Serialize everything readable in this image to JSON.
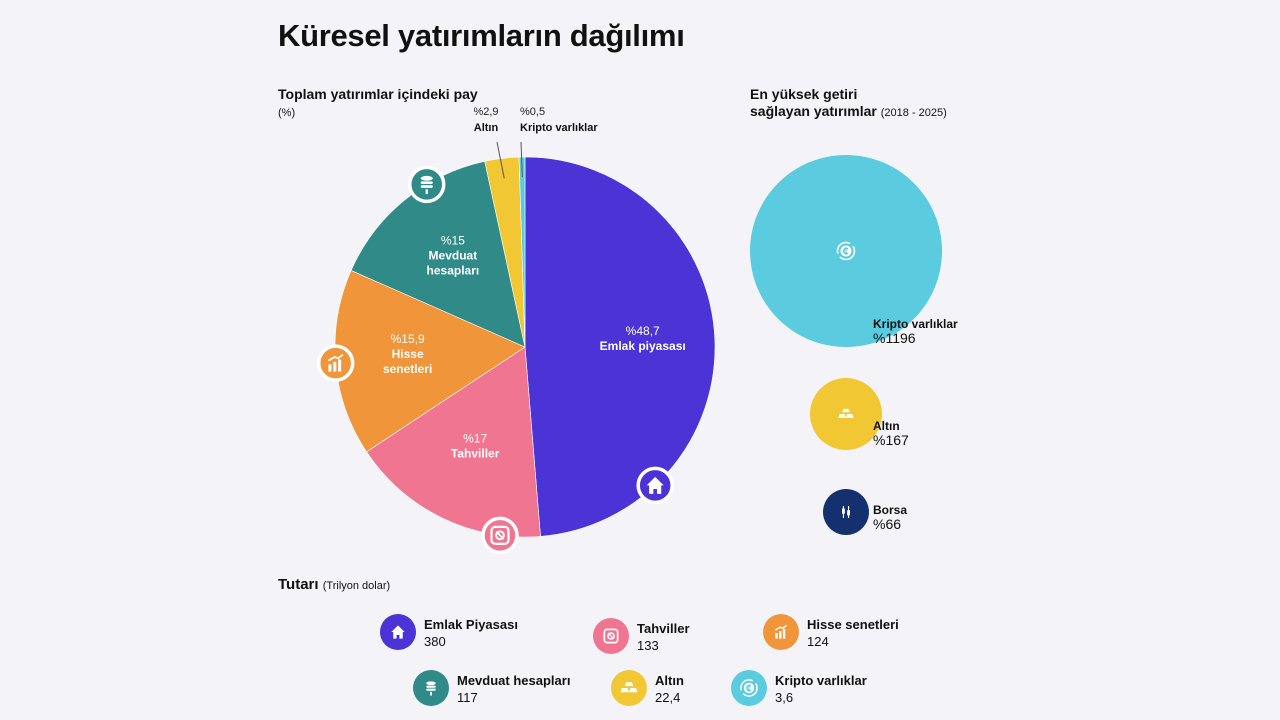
{
  "title": "Küresel yatırımların dağılımı",
  "pie_subtitle": {
    "main": "Toplam yatırımlar içindeki pay",
    "unit": "(%)"
  },
  "bubble_subtitle": {
    "line1": "En yüksek getiri",
    "line2": "sağlayan yatırımlar",
    "period": "(2018 - 2025)"
  },
  "amount_title": {
    "main": "Tutarı",
    "unit": "(Trilyon dolar)"
  },
  "colors": {
    "real_estate": "#4b33d6",
    "bonds": "#ef7590",
    "stocks": "#f1953a",
    "deposits": "#2f8a88",
    "gold": "#f2c734",
    "crypto": "#5bcbe0",
    "exchange": "#14306e"
  },
  "chart_data": [
    {
      "type": "pie",
      "title": "Toplam yatırımlar içindeki pay (%)",
      "slices": [
        {
          "id": "real_estate",
          "label": "Emlak piyasası",
          "value": 48.7,
          "value_label": "%48,7",
          "icon": "house-icon"
        },
        {
          "id": "bonds",
          "label": "Tahviller",
          "value": 17,
          "value_label": "%17",
          "icon": "bond-icon"
        },
        {
          "id": "stocks",
          "label": "Hisse senetleri",
          "value": 15.9,
          "value_label": "%15,9",
          "icon": "bar-chart-icon"
        },
        {
          "id": "deposits",
          "label": "Mevduat hesapları",
          "value": 15,
          "value_label": "%15",
          "icon": "coin-stack-icon"
        },
        {
          "id": "gold",
          "label": "Altın",
          "value": 2.9,
          "value_label": "%2,9",
          "icon": "gold-bars-icon"
        },
        {
          "id": "crypto",
          "label": "Kripto varlıklar",
          "value": 0.5,
          "value_label": "%0,5",
          "icon": "crypto-coin-icon"
        }
      ]
    },
    {
      "type": "bubble",
      "title": "En yüksek getiri sağlayan yatırımlar (2018 - 2025)",
      "items": [
        {
          "id": "crypto",
          "label": "Kripto varlıklar",
          "value": 1196,
          "value_label": "%1196",
          "icon": "crypto-coin-icon"
        },
        {
          "id": "gold",
          "label": "Altın",
          "value": 167,
          "value_label": "%167",
          "icon": "gold-bars-icon"
        },
        {
          "id": "exchange",
          "label": "Borsa",
          "value": 66,
          "value_label": "%66",
          "icon": "candlestick-icon"
        }
      ]
    }
  ],
  "amounts": [
    {
      "id": "real_estate",
      "label": "Emlak Piyasası",
      "value": 380,
      "value_label": "380",
      "icon": "house-icon"
    },
    {
      "id": "bonds",
      "label": "Tahviller",
      "value": 133,
      "value_label": "133",
      "icon": "bond-icon"
    },
    {
      "id": "stocks",
      "label": "Hisse senetleri",
      "value": 124,
      "value_label": "124",
      "icon": "bar-chart-icon"
    },
    {
      "id": "deposits",
      "label": "Mevduat hesapları",
      "value": 117,
      "value_label": "117",
      "icon": "coin-stack-icon"
    },
    {
      "id": "gold",
      "label": "Altın",
      "value": 22.4,
      "value_label": "22,4",
      "icon": "gold-bars-icon"
    },
    {
      "id": "crypto",
      "label": "Kripto varlıklar",
      "value": 3.6,
      "value_label": "3,6",
      "icon": "crypto-coin-icon"
    }
  ]
}
